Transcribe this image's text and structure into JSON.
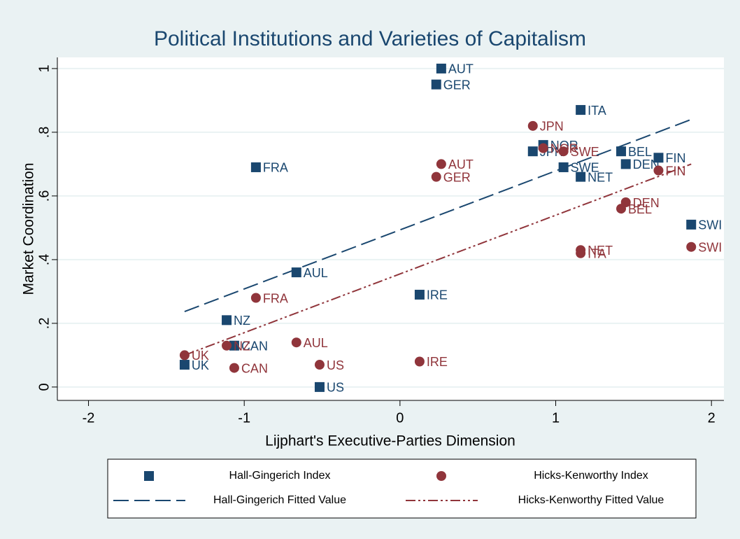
{
  "chart_data": {
    "type": "scatter",
    "title": "Political Institutions and Varieties of Capitalism",
    "x_label": "Lijphart's Executive-Parties Dimension",
    "y_label": "Market Coordination",
    "xlim": [
      -2.2,
      2.08
    ],
    "ylim": [
      -0.042,
      1.035
    ],
    "xticks": [
      -2,
      -1,
      0,
      1,
      2
    ],
    "yticks": [
      0,
      {
        "value": 0.2,
        "label": ".2"
      },
      {
        "value": 0.4,
        "label": ".4"
      },
      {
        "value": 0.6,
        "label": ".6"
      },
      {
        "value": 0.8,
        "label": ".8"
      },
      1
    ],
    "grid": true,
    "series": [
      {
        "name": "Hall-Gingerich Index",
        "color": "#1a476f",
        "marker": "square",
        "labels": [
          "AUT",
          "GER",
          "ITA",
          "NOR",
          "JPN",
          "BEL",
          "FIN",
          "DEN",
          "SWE",
          "NET",
          "FRA",
          "SWI",
          "AUL",
          "IRE",
          "NZ",
          "CAN",
          "UK",
          "US"
        ],
        "x": [
          0.265,
          0.233,
          1.16,
          0.92,
          0.853,
          1.42,
          1.66,
          1.45,
          1.05,
          1.16,
          -0.925,
          1.87,
          -0.665,
          0.126,
          -1.113,
          -1.064,
          -1.383,
          -0.516
        ],
        "values": [
          1.0,
          0.95,
          0.87,
          0.76,
          0.74,
          0.74,
          0.72,
          0.7,
          0.69,
          0.66,
          0.69,
          0.51,
          0.36,
          0.29,
          0.21,
          0.13,
          0.07,
          0.0
        ]
      },
      {
        "name": "Hicks-Kenworthy Index",
        "color": "#90353b",
        "marker": "circle",
        "labels": [
          "JPN",
          "NOR",
          "SWE",
          "AUT",
          "GER",
          "FIN",
          "DEN",
          "BEL",
          "NET",
          "ITA",
          "SWI",
          "FRA",
          "AUL",
          "NZ",
          "UK",
          "US",
          "IRE",
          "CAN"
        ],
        "x": [
          0.853,
          0.92,
          1.05,
          0.265,
          0.233,
          1.66,
          1.45,
          1.42,
          1.16,
          1.16,
          1.87,
          -0.925,
          -0.665,
          -1.113,
          -1.383,
          -0.516,
          0.126,
          -1.064
        ],
        "values": [
          0.82,
          0.75,
          0.74,
          0.7,
          0.66,
          0.68,
          0.58,
          0.56,
          0.43,
          0.42,
          0.44,
          0.28,
          0.14,
          0.13,
          0.1,
          0.07,
          0.08,
          0.06
        ]
      },
      {
        "name": "Hall-Gingerich Fitted Value",
        "color": "#1a476f",
        "line_style": "dash",
        "x": [
          -1.383,
          1.87
        ],
        "values": [
          0.237,
          0.84
        ]
      },
      {
        "name": "Hicks-Kenworthy Fitted Value",
        "color": "#90353b",
        "line_style": "dashdot",
        "x": [
          -1.383,
          1.87
        ],
        "values": [
          0.1,
          0.7
        ]
      }
    ]
  }
}
